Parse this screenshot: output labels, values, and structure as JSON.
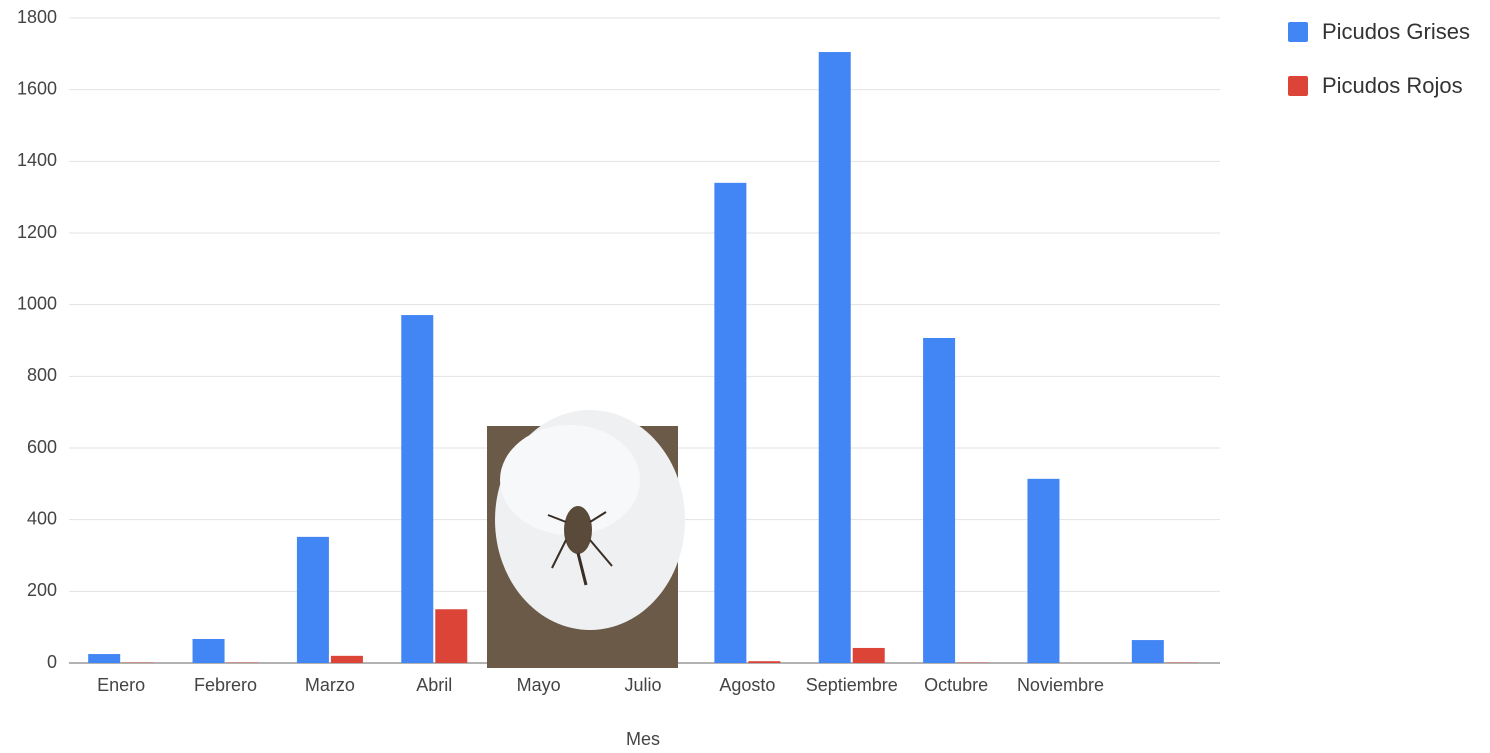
{
  "chart_data": {
    "type": "bar",
    "x_label": "Mes",
    "categories": [
      "Enero",
      "Febrero",
      "Marzo",
      "Abril",
      "Mayo",
      "Julio",
      "Agosto",
      "Septiembre",
      "Octubre",
      "Noviembre",
      null
    ],
    "series": [
      {
        "name": "Picudos Grises",
        "color": "#4285f4",
        "values": [
          25,
          67,
          352,
          971,
          null,
          null,
          1340,
          1705,
          907,
          514,
          64
        ]
      },
      {
        "name": "Picudos Rojos",
        "color": "#db4437",
        "values": [
          1,
          1,
          20,
          150,
          null,
          null,
          5,
          42,
          1,
          0,
          1
        ]
      }
    ],
    "ylim": [
      0,
      1800
    ],
    "yticks": [
      0,
      200,
      400,
      600,
      800,
      1000,
      1200,
      1400,
      1600,
      1800
    ],
    "grid": true,
    "legend": "right"
  }
}
